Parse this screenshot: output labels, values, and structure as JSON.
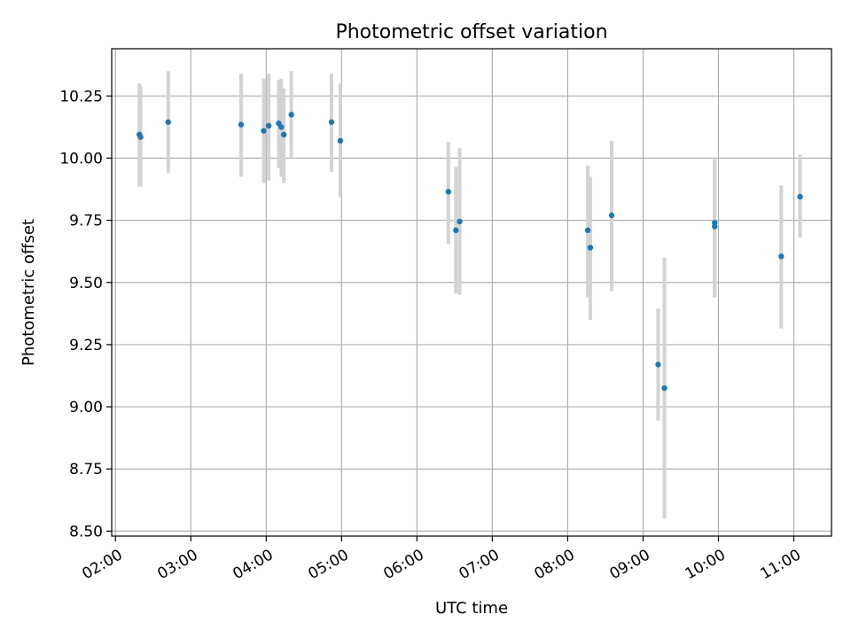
{
  "chart_data": {
    "type": "scatter",
    "title": "Photometric offset variation",
    "xlabel": "UTC time",
    "ylabel": "Photometric offset",
    "xlim": [
      "01:57",
      "11:30"
    ],
    "ylim": [
      8.48,
      10.44
    ],
    "grid": true,
    "x_ticks": [
      "02:00",
      "03:00",
      "04:00",
      "05:00",
      "06:00",
      "07:00",
      "08:00",
      "09:00",
      "10:00",
      "11:00"
    ],
    "y_ticks": [
      "8.50",
      "8.75",
      "9.00",
      "9.25",
      "9.50",
      "9.75",
      "10.00",
      "10.25"
    ],
    "colors": {
      "point": "#1f77b4",
      "errorbar": "#d3d3d3",
      "grid": "#b0b0b0"
    },
    "points": [
      {
        "x": "02:19",
        "y": 10.095,
        "err_low": 9.885,
        "err_high": 10.3
      },
      {
        "x": "02:20",
        "y": 10.085,
        "err_low": 9.885,
        "err_high": 10.29
      },
      {
        "x": "02:42",
        "y": 10.145,
        "err_low": 9.94,
        "err_high": 10.35
      },
      {
        "x": "03:40",
        "y": 10.135,
        "err_low": 9.925,
        "err_high": 10.34
      },
      {
        "x": "03:58",
        "y": 10.11,
        "err_low": 9.9,
        "err_high": 10.32
      },
      {
        "x": "04:02",
        "y": 10.13,
        "err_low": 9.91,
        "err_high": 10.34
      },
      {
        "x": "04:10",
        "y": 10.14,
        "err_low": 9.96,
        "err_high": 10.315
      },
      {
        "x": "04:12",
        "y": 10.125,
        "err_low": 9.925,
        "err_high": 10.32
      },
      {
        "x": "04:14",
        "y": 10.095,
        "err_low": 9.9,
        "err_high": 10.28
      },
      {
        "x": "04:20",
        "y": 10.175,
        "err_low": 10.0,
        "err_high": 10.35
      },
      {
        "x": "04:52",
        "y": 10.145,
        "err_low": 9.945,
        "err_high": 10.34
      },
      {
        "x": "04:59",
        "y": 10.07,
        "err_low": 9.845,
        "err_high": 10.3
      },
      {
        "x": "06:25",
        "y": 9.865,
        "err_low": 9.655,
        "err_high": 10.065
      },
      {
        "x": "06:31",
        "y": 9.71,
        "err_low": 9.455,
        "err_high": 9.965
      },
      {
        "x": "06:34",
        "y": 9.745,
        "err_low": 9.45,
        "err_high": 10.04
      },
      {
        "x": "08:16",
        "y": 9.71,
        "err_low": 9.44,
        "err_high": 9.97
      },
      {
        "x": "08:18",
        "y": 9.64,
        "err_low": 9.35,
        "err_high": 9.925
      },
      {
        "x": "08:35",
        "y": 9.77,
        "err_low": 9.465,
        "err_high": 10.07
      },
      {
        "x": "09:12",
        "y": 9.17,
        "err_low": 8.945,
        "err_high": 9.395
      },
      {
        "x": "09:17",
        "y": 9.075,
        "err_low": 8.55,
        "err_high": 9.6
      },
      {
        "x": "09:57",
        "y": 9.74,
        "err_low": 9.44,
        "err_high": 9.995
      },
      {
        "x": "09:57",
        "y": 9.725,
        "err_low": 9.44,
        "err_high": 9.995
      },
      {
        "x": "10:50",
        "y": 9.605,
        "err_low": 9.315,
        "err_high": 9.89
      },
      {
        "x": "11:05",
        "y": 9.845,
        "err_low": 9.68,
        "err_high": 10.015
      }
    ]
  }
}
